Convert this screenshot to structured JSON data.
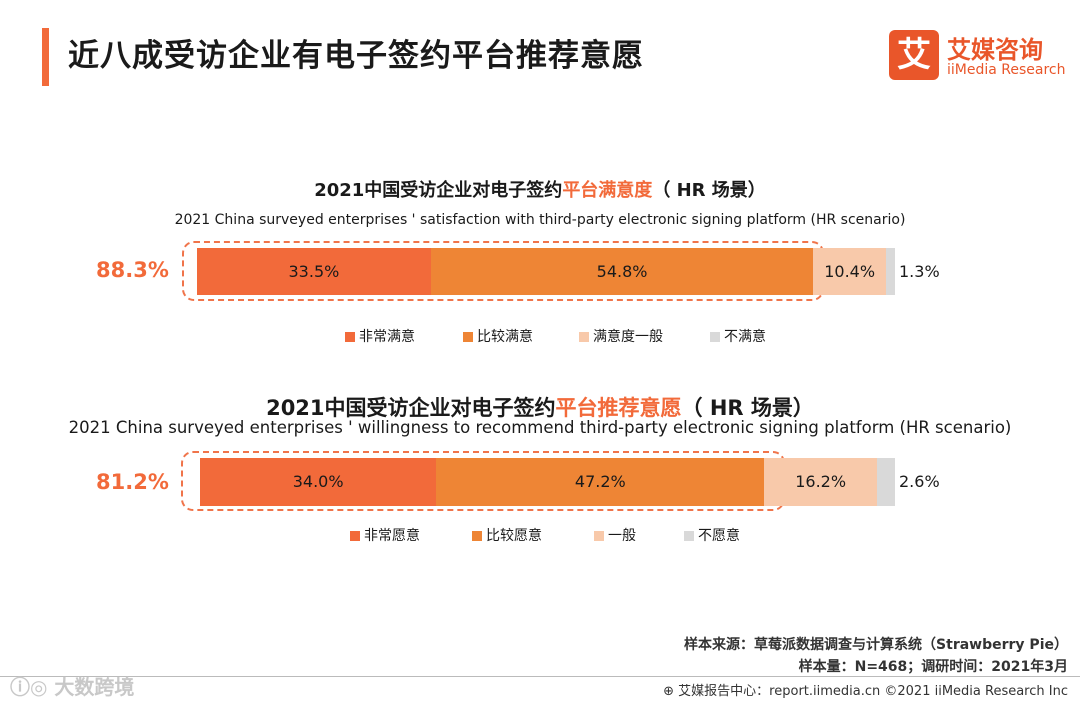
{
  "page": {
    "title": "近八成受访企业有电子签约平台推荐意愿"
  },
  "logo": {
    "mark": "艾",
    "name_cn": "艾媒咨询",
    "name_en": "iiMedia Research"
  },
  "chart_data": [
    {
      "type": "bar",
      "orientation": "horizontal-stacked-100",
      "title_prefix": "2021中国受访企业对电子签约",
      "title_highlight": "平台满意度",
      "title_suffix": "（ HR 场景）",
      "subtitle": "2021 China surveyed enterprises ' satisfaction with third-party electronic signing platform (HR scenario)",
      "headline": "88.3%",
      "series": [
        {
          "name": "非常满意",
          "value": 33.5,
          "label": "33.5%",
          "color": "#f26a3a"
        },
        {
          "name": "比较满意",
          "value": 54.8,
          "label": "54.8%",
          "color": "#ee8535"
        },
        {
          "name": "满意度一般",
          "value": 10.4,
          "label": "10.4%",
          "color": "#f8c9aa"
        },
        {
          "name": "不满意",
          "value": 1.3,
          "label": "1.3%",
          "color": "#d9d9d9"
        }
      ]
    },
    {
      "type": "bar",
      "orientation": "horizontal-stacked-100",
      "title_prefix": "2021中国受访企业对电子签约",
      "title_highlight": "平台推荐意愿",
      "title_suffix": "（ HR 场景）",
      "subtitle": "2021 China surveyed enterprises ' willingness to recommend third-party electronic signing platform (HR scenario)",
      "headline": "81.2%",
      "series": [
        {
          "name": "非常愿意",
          "value": 34.0,
          "label": "34.0%",
          "color": "#f26a3a"
        },
        {
          "name": "比较愿意",
          "value": 47.2,
          "label": "47.2%",
          "color": "#ee8535"
        },
        {
          "name": "一般",
          "value": 16.2,
          "label": "16.2%",
          "color": "#f8c9aa"
        },
        {
          "name": "不愿意",
          "value": 2.6,
          "label": "2.6%",
          "color": "#d9d9d9"
        }
      ]
    }
  ],
  "notes": {
    "source": "样本来源：草莓派数据调查与计算系统（Strawberry Pie）",
    "sample": "样本量：N=468；调研时间：2021年3月"
  },
  "footer": {
    "text": "⊕ 艾媒报告中心：report.iimedia.cn  ©2021  iiMedia Research  Inc"
  },
  "watermark": {
    "text": "ⓘ◎ 大数跨境"
  }
}
